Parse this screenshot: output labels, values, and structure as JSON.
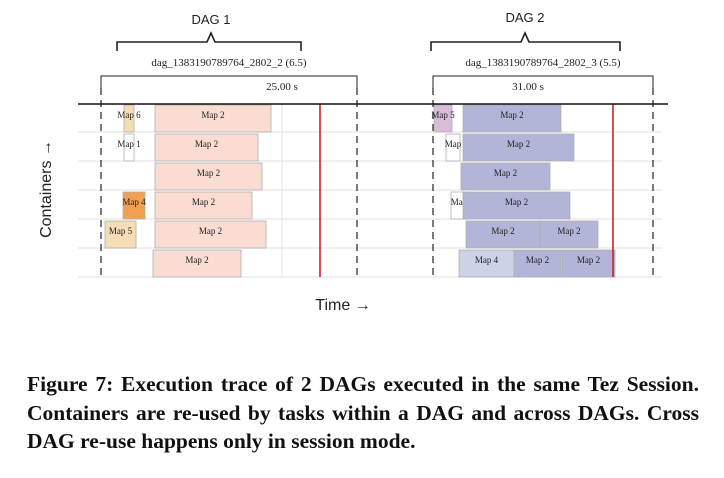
{
  "dags": [
    {
      "label": "DAG 1",
      "name": "dag_1383190789764_2802_2 (6.5)",
      "duration": "25.00 s"
    },
    {
      "label": "DAG 2",
      "name": "dag_1383190789764_2802_3 (5.5)",
      "duration": "31.00 s"
    }
  ],
  "y_axis_label": "Containers →",
  "x_axis_label": "Time →",
  "colors": {
    "light_orange": "#f7ddb5",
    "orange": "#f0a050",
    "salmon": "#fadcd2",
    "violet": "#d8bcd8",
    "lavender": "#b2b4d8",
    "pale_lavender": "#cdd3e6",
    "red_line": "#d0202a",
    "border_gray": "#b0b0b0"
  },
  "tasks": [
    {
      "row": 0,
      "dag": 1,
      "label": "Map 6",
      "style": "light_orange"
    },
    {
      "row": 0,
      "dag": 1,
      "label": "Map 2",
      "style": "salmon"
    },
    {
      "row": 0,
      "dag": 2,
      "label": "Map 5",
      "style": "violet"
    },
    {
      "row": 0,
      "dag": 2,
      "label": "Map 2",
      "style": "lavender"
    },
    {
      "row": 1,
      "dag": 1,
      "label": "Map 1",
      "style": "white"
    },
    {
      "row": 1,
      "dag": 1,
      "label": "Map 2",
      "style": "salmon"
    },
    {
      "row": 1,
      "dag": 2,
      "label": "Map",
      "style": "white"
    },
    {
      "row": 1,
      "dag": 2,
      "label": "Map 2",
      "style": "lavender"
    },
    {
      "row": 2,
      "dag": 1,
      "label": "Map 2",
      "style": "salmon"
    },
    {
      "row": 2,
      "dag": 2,
      "label": "Map 2",
      "style": "lavender"
    },
    {
      "row": 3,
      "dag": 1,
      "label": "Map 4",
      "style": "orange"
    },
    {
      "row": 3,
      "dag": 1,
      "label": "Map 2",
      "style": "salmon"
    },
    {
      "row": 3,
      "dag": 2,
      "label": "Map",
      "style": "white"
    },
    {
      "row": 3,
      "dag": 2,
      "label": "Map 2",
      "style": "lavender"
    },
    {
      "row": 4,
      "dag": 1,
      "label": "Map 5",
      "style": "light_orange"
    },
    {
      "row": 4,
      "dag": 1,
      "label": "Map 2",
      "style": "salmon"
    },
    {
      "row": 4,
      "dag": 2,
      "label": "Map 2",
      "style": "lavender"
    },
    {
      "row": 4,
      "dag": 2,
      "label": "Map 2",
      "style": "lavender"
    },
    {
      "row": 5,
      "dag": 1,
      "label": "Map 2",
      "style": "salmon"
    },
    {
      "row": 5,
      "dag": 2,
      "label": "Map 4",
      "style": "pale_lavender"
    },
    {
      "row": 5,
      "dag": 2,
      "label": "Map 2",
      "style": "lavender"
    },
    {
      "row": 5,
      "dag": 2,
      "label": "Map 2",
      "style": "lavender"
    }
  ],
  "caption": "Figure 7: Execution trace of 2 DAGs executed in the same Tez Session. Containers are re-used by tasks within a DAG and across DAGs. Cross DAG re-use happens only in session mode."
}
